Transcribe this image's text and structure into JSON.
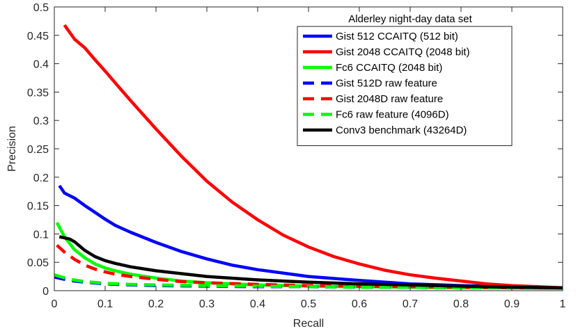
{
  "chart_data": {
    "type": "line",
    "title": "",
    "xlabel": "Recall",
    "ylabel": "Precision",
    "xlim": [
      0,
      1
    ],
    "ylim": [
      0,
      0.5
    ],
    "grid": false,
    "xticks": [
      0,
      0.1,
      0.2,
      0.3,
      0.4,
      0.5,
      0.6,
      0.7,
      0.8,
      0.9,
      1
    ],
    "xtick_labels": [
      "0",
      "0.1",
      "0.2",
      "0.3",
      "0.4",
      "0.5",
      "0.6",
      "0.7",
      "0.8",
      "0.9",
      "1"
    ],
    "yticks": [
      0,
      0.05,
      0.1,
      0.15,
      0.2,
      0.25,
      0.3,
      0.35,
      0.4,
      0.45,
      0.5
    ],
    "ytick_labels": [
      "0",
      "0.05",
      "0.1",
      "0.15",
      "0.2",
      "0.25",
      "0.3",
      "0.35",
      "0.4",
      "0.45",
      "0.5"
    ],
    "legend": {
      "title": "Alderley night-day data set",
      "placement": "top-right"
    },
    "series": [
      {
        "name": "Gist 512 CCAITQ (512 bit)",
        "color": "#0000ff",
        "style": "solid",
        "x": [
          0.01,
          0.02,
          0.04,
          0.06,
          0.08,
          0.1,
          0.12,
          0.15,
          0.2,
          0.25,
          0.3,
          0.35,
          0.4,
          0.5,
          0.6,
          0.7,
          0.8,
          0.9,
          1.0
        ],
        "y": [
          0.185,
          0.172,
          0.163,
          0.15,
          0.138,
          0.126,
          0.115,
          0.103,
          0.085,
          0.069,
          0.056,
          0.045,
          0.037,
          0.025,
          0.018,
          0.012,
          0.009,
          0.007,
          0.005
        ]
      },
      {
        "name": "Gist 2048 CCAITQ (2048 bit)",
        "color": "#ff0000",
        "style": "solid",
        "x": [
          0.02,
          0.04,
          0.06,
          0.08,
          0.1,
          0.12,
          0.15,
          0.2,
          0.25,
          0.3,
          0.35,
          0.4,
          0.45,
          0.5,
          0.55,
          0.6,
          0.65,
          0.7,
          0.75,
          0.8,
          0.85,
          0.9,
          0.95,
          1.0
        ],
        "y": [
          0.468,
          0.443,
          0.428,
          0.407,
          0.387,
          0.366,
          0.335,
          0.285,
          0.237,
          0.193,
          0.156,
          0.125,
          0.098,
          0.077,
          0.06,
          0.047,
          0.036,
          0.028,
          0.022,
          0.017,
          0.012,
          0.009,
          0.007,
          0.005
        ]
      },
      {
        "name": "Fc6 CCAITQ (2048 bit)",
        "color": "#00ff00",
        "style": "solid",
        "x": [
          0.005,
          0.02,
          0.04,
          0.06,
          0.08,
          0.1,
          0.12,
          0.15,
          0.2,
          0.25,
          0.3,
          0.4,
          0.5,
          0.6,
          0.7,
          0.8,
          0.9,
          1.0
        ],
        "y": [
          0.12,
          0.095,
          0.072,
          0.058,
          0.047,
          0.04,
          0.035,
          0.029,
          0.022,
          0.017,
          0.014,
          0.01,
          0.008,
          0.007,
          0.006,
          0.005,
          0.005,
          0.004
        ]
      },
      {
        "name": "Gist 512D raw feature",
        "color": "#0000ff",
        "style": "dashed",
        "x": [
          0.0,
          0.03,
          0.06,
          0.1,
          0.15,
          0.2,
          0.3,
          0.4,
          0.5,
          0.6,
          0.7,
          0.8,
          0.9,
          1.0
        ],
        "y": [
          0.024,
          0.018,
          0.015,
          0.012,
          0.01,
          0.009,
          0.008,
          0.007,
          0.007,
          0.006,
          0.006,
          0.005,
          0.005,
          0.005
        ]
      },
      {
        "name": "Gist 2048D raw feature",
        "color": "#ff0000",
        "style": "dashed",
        "x": [
          0.005,
          0.02,
          0.04,
          0.06,
          0.08,
          0.1,
          0.12,
          0.15,
          0.2,
          0.25,
          0.3,
          0.4,
          0.5,
          0.6,
          0.7,
          0.8,
          0.9,
          1.0
        ],
        "y": [
          0.08,
          0.068,
          0.055,
          0.045,
          0.038,
          0.033,
          0.029,
          0.025,
          0.02,
          0.016,
          0.014,
          0.011,
          0.009,
          0.008,
          0.007,
          0.006,
          0.005,
          0.005
        ]
      },
      {
        "name": "Fc6 raw feature (4096D)",
        "color": "#00ff00",
        "style": "dashed",
        "x": [
          0.0,
          0.03,
          0.06,
          0.1,
          0.15,
          0.2,
          0.3,
          0.4,
          0.5,
          0.6,
          0.7,
          0.8,
          0.9,
          1.0
        ],
        "y": [
          0.028,
          0.02,
          0.016,
          0.013,
          0.011,
          0.01,
          0.009,
          0.008,
          0.007,
          0.006,
          0.006,
          0.005,
          0.005,
          0.005
        ]
      },
      {
        "name": "Conv3 benchmark (43264D)",
        "color": "#000000",
        "style": "solid",
        "x": [
          0.01,
          0.02,
          0.03,
          0.04,
          0.06,
          0.08,
          0.1,
          0.12,
          0.15,
          0.2,
          0.25,
          0.3,
          0.4,
          0.5,
          0.6,
          0.7,
          0.8,
          0.9,
          1.0
        ],
        "y": [
          0.095,
          0.093,
          0.091,
          0.086,
          0.071,
          0.06,
          0.053,
          0.048,
          0.042,
          0.035,
          0.03,
          0.025,
          0.019,
          0.015,
          0.012,
          0.01,
          0.008,
          0.006,
          0.005
        ]
      }
    ]
  }
}
